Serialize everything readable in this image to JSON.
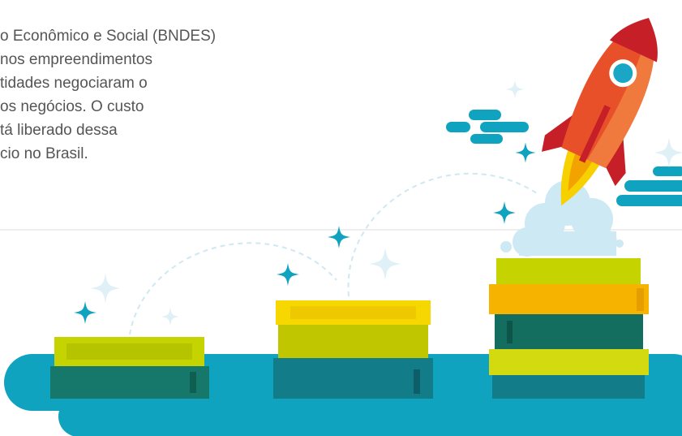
{
  "paragraph": {
    "lines": [
      "o Econômico e Social (BNDES)",
      "nos empreendimentos",
      "tidades negociaram o",
      "os negócios. O custo",
      "tá liberado dessa",
      "cio no Brasil."
    ]
  }
}
